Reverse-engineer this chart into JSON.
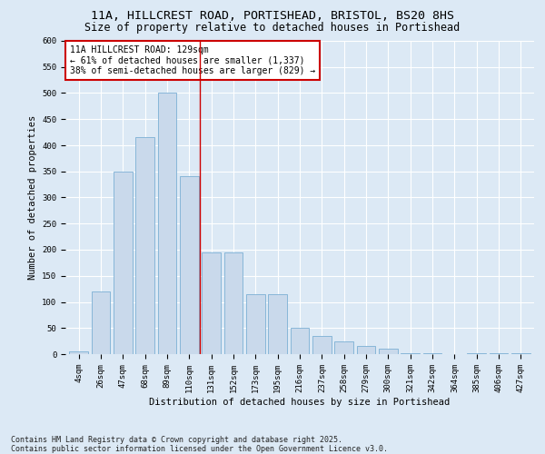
{
  "title_line1": "11A, HILLCREST ROAD, PORTISHEAD, BRISTOL, BS20 8HS",
  "title_line2": "Size of property relative to detached houses in Portishead",
  "xlabel": "Distribution of detached houses by size in Portishead",
  "ylabel": "Number of detached properties",
  "categories": [
    "4sqm",
    "26sqm",
    "47sqm",
    "68sqm",
    "89sqm",
    "110sqm",
    "131sqm",
    "152sqm",
    "173sqm",
    "195sqm",
    "216sqm",
    "237sqm",
    "258sqm",
    "279sqm",
    "300sqm",
    "321sqm",
    "342sqm",
    "364sqm",
    "385sqm",
    "406sqm",
    "427sqm"
  ],
  "values": [
    5,
    120,
    350,
    415,
    500,
    340,
    195,
    195,
    115,
    115,
    50,
    35,
    25,
    15,
    10,
    2,
    2,
    0,
    2,
    1,
    1
  ],
  "bar_color": "#c9d9eb",
  "bar_edge_color": "#7bafd4",
  "vline_index": 6,
  "vline_color": "#cc0000",
  "annotation_text": "11A HILLCREST ROAD: 129sqm\n← 61% of detached houses are smaller (1,337)\n38% of semi-detached houses are larger (829) →",
  "annotation_box_facecolor": "#ffffff",
  "annotation_box_edgecolor": "#cc0000",
  "ylim": [
    0,
    600
  ],
  "yticks": [
    0,
    50,
    100,
    150,
    200,
    250,
    300,
    350,
    400,
    450,
    500,
    550,
    600
  ],
  "footer_text": "Contains HM Land Registry data © Crown copyright and database right 2025.\nContains public sector information licensed under the Open Government Licence v3.0.",
  "bg_color": "#dce9f5",
  "plot_bg_color": "#dce9f5",
  "grid_color": "#ffffff",
  "title_fontsize": 9.5,
  "subtitle_fontsize": 8.5,
  "axis_label_fontsize": 7.5,
  "tick_fontsize": 6.5,
  "annotation_fontsize": 7,
  "footer_fontsize": 6
}
